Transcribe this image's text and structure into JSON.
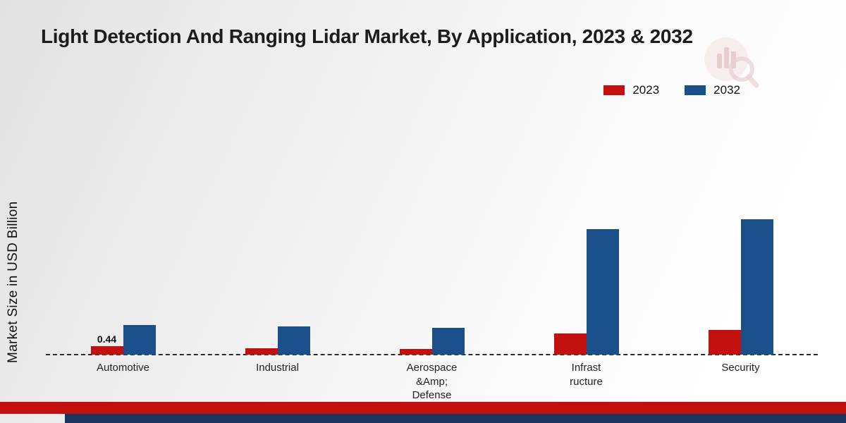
{
  "chart_data": {
    "type": "bar",
    "title": "Light Detection And Ranging Lidar Market, By Application, 2023 & 2032",
    "ylabel": "Market Size in USD Billion",
    "categories": [
      "Automotive",
      "Industrial",
      "Aerospace\n&Amp;\nDefense",
      "Infrast\nructure",
      "Security"
    ],
    "series": [
      {
        "name": "2023",
        "color": "#c40f0f",
        "values": [
          0.44,
          0.35,
          0.3,
          1.1,
          1.3
        ]
      },
      {
        "name": "2032",
        "color": "#1b4f8a",
        "values": [
          1.55,
          1.5,
          1.42,
          6.6,
          7.1
        ]
      }
    ],
    "annotations": [
      {
        "series": "2023",
        "category_index": 0,
        "text": "0.44"
      }
    ],
    "ylim": [
      0,
      12.6
    ],
    "grid": "off",
    "baseline_style": "dashed",
    "legend_position": "top-right"
  },
  "icons": {
    "watermark": "bar-chart-magnifier-logo"
  },
  "footer": {
    "red": "#c40f0f",
    "navy": "#1b355e"
  }
}
